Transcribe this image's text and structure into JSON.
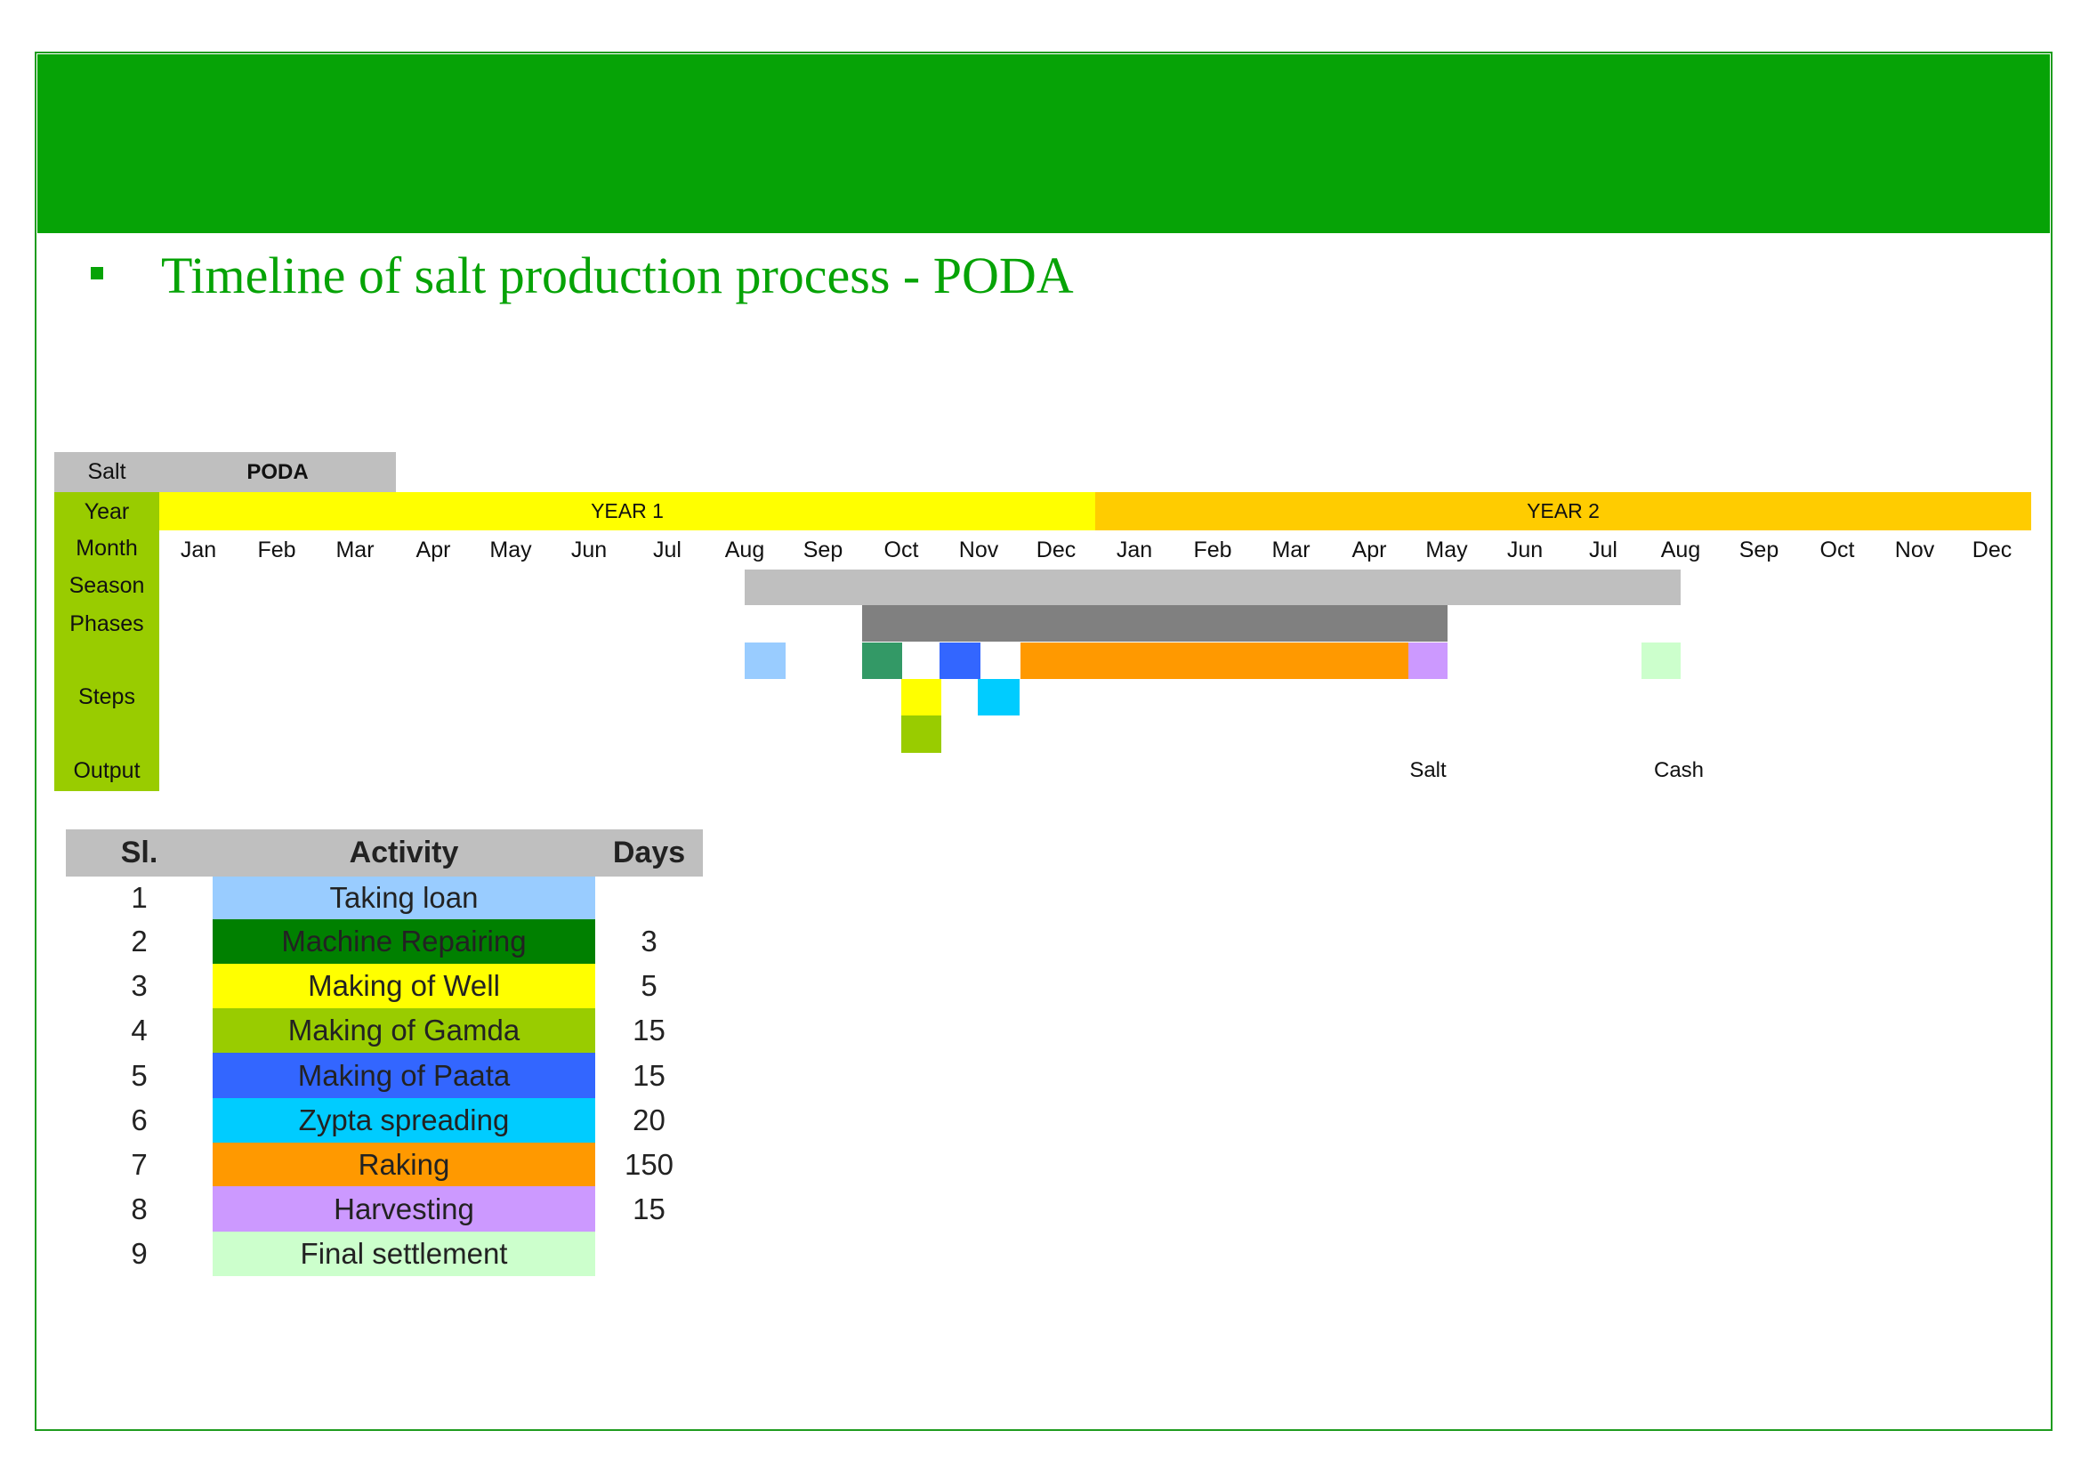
{
  "slide": {
    "title": "Timeline of salt production process - PODA"
  },
  "timeline": {
    "salt_label": "Salt",
    "salt_value": "PODA",
    "year_label": "Year",
    "year1": "YEAR 1",
    "year2": "YEAR 2",
    "month_label": "Month",
    "season_label": "Season",
    "phases_label": "Phases",
    "steps_label": "Steps",
    "output_label": "Output",
    "months": [
      "Jan",
      "Feb",
      "Mar",
      "Apr",
      "May",
      "Jun",
      "Jul",
      "Aug",
      "Sep",
      "Oct",
      "Nov",
      "Dec",
      "Jan",
      "Feb",
      "Mar",
      "Apr",
      "May",
      "Jun",
      "Jul",
      "Aug",
      "Sep",
      "Oct",
      "Nov",
      "Dec"
    ],
    "output_salt": "Salt",
    "output_cash": "Cash",
    "colors": {
      "label_bg": "#99cc00",
      "salt_bg": "#bfbfbf",
      "year1": "#ffff00",
      "year2": "#ffcc00",
      "season": "#bfbfbf",
      "phases": "#808080"
    }
  },
  "legend": {
    "headers": {
      "sl": "Sl.",
      "activity": "Activity",
      "days": "Days"
    },
    "rows": [
      {
        "sl": "1",
        "activity": "Taking loan",
        "days": "",
        "color": "#99ccff"
      },
      {
        "sl": "2",
        "activity": "Machine Repairing",
        "days": "3",
        "color": "#008000"
      },
      {
        "sl": "3",
        "activity": "Making of Well",
        "days": "5",
        "color": "#ffff00"
      },
      {
        "sl": "4",
        "activity": "Making of Gamda",
        "days": "15",
        "color": "#99cc00"
      },
      {
        "sl": "5",
        "activity": "Making of Paata",
        "days": "15",
        "color": "#3366ff"
      },
      {
        "sl": "6",
        "activity": "Zypta spreading",
        "days": "20",
        "color": "#00ccff"
      },
      {
        "sl": "7",
        "activity": "Raking",
        "days": "150",
        "color": "#ff9900"
      },
      {
        "sl": "8",
        "activity": "Harvesting",
        "days": "15",
        "color": "#cc99ff"
      },
      {
        "sl": "9",
        "activity": "Final settlement",
        "days": "",
        "color": "#ccffcc"
      }
    ]
  }
}
